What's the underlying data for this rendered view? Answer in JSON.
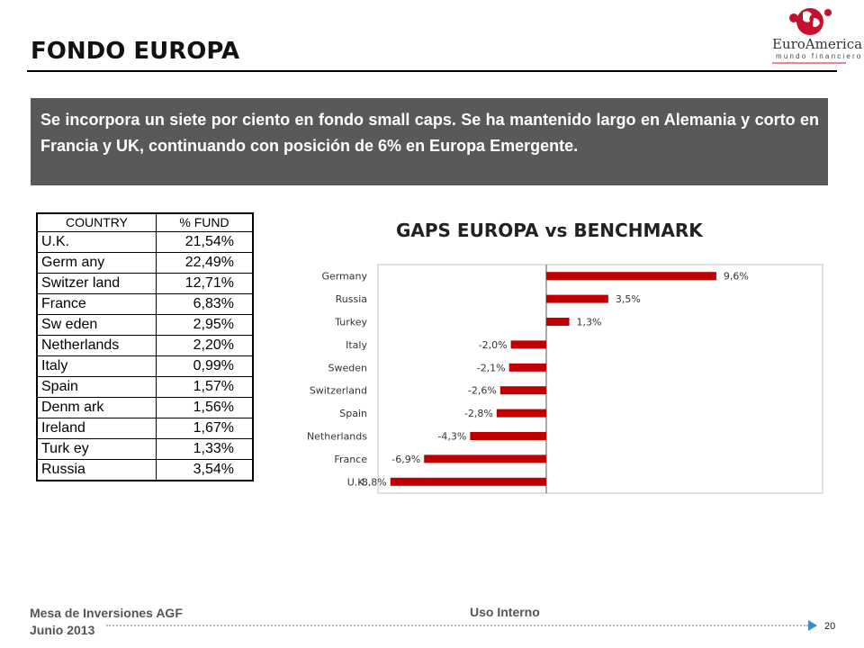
{
  "header": {
    "title": "FONDO EUROPA",
    "logo_name": "EuroAmerica",
    "logo_tagline": "mundo financiero"
  },
  "note": "Se incorpora un siete por ciento en fondo small caps. Se ha mantenido largo en Alemania y corto en Francia y UK, continuando con posición de 6% en Europa Emergente.",
  "table": {
    "headers": [
      "COUNTRY",
      "% FUND"
    ],
    "rows": [
      [
        "U.K.",
        "21,54%"
      ],
      [
        "Germ any",
        "22,49%"
      ],
      [
        "Switzer land",
        "12,71%"
      ],
      [
        "France",
        "6,83%"
      ],
      [
        "Sw eden",
        "2,95%"
      ],
      [
        "Netherlands",
        "2,20%"
      ],
      [
        "Italy",
        "0,99%"
      ],
      [
        "Spain",
        "1,57%"
      ],
      [
        "Denm ark",
        "1,56%"
      ],
      [
        "Ireland",
        "1,67%"
      ],
      [
        "Turk ey",
        "1,33%"
      ],
      [
        "Russia",
        "3,54%"
      ]
    ]
  },
  "chart_data": {
    "type": "bar",
    "orientation": "horizontal",
    "title": "GAPS EUROPA  vs BENCHMARK",
    "categories": [
      "Germany",
      "Russia",
      "Turkey",
      "Italy",
      "Sweden",
      "Switzerland",
      "Spain",
      "Netherlands",
      "France",
      "U.K."
    ],
    "values": [
      9.6,
      3.5,
      1.3,
      -2.0,
      -2.1,
      -2.6,
      -2.8,
      -4.3,
      -6.9,
      -8.8
    ],
    "labels": [
      "9,6%",
      "3,5%",
      "1,3%",
      "-2,0%",
      "-2,1%",
      "-2,6%",
      "-2,8%",
      "-4,3%",
      "-6,9%",
      "-8,8%"
    ],
    "xlim": [
      -9.5,
      15.6
    ],
    "bar_color": "#c00000",
    "grid": false
  },
  "footer": {
    "left_line1": "Mesa de Inversiones AGF",
    "left_line2": "Junio 2013",
    "center": "Uso Interno",
    "page": "20"
  }
}
